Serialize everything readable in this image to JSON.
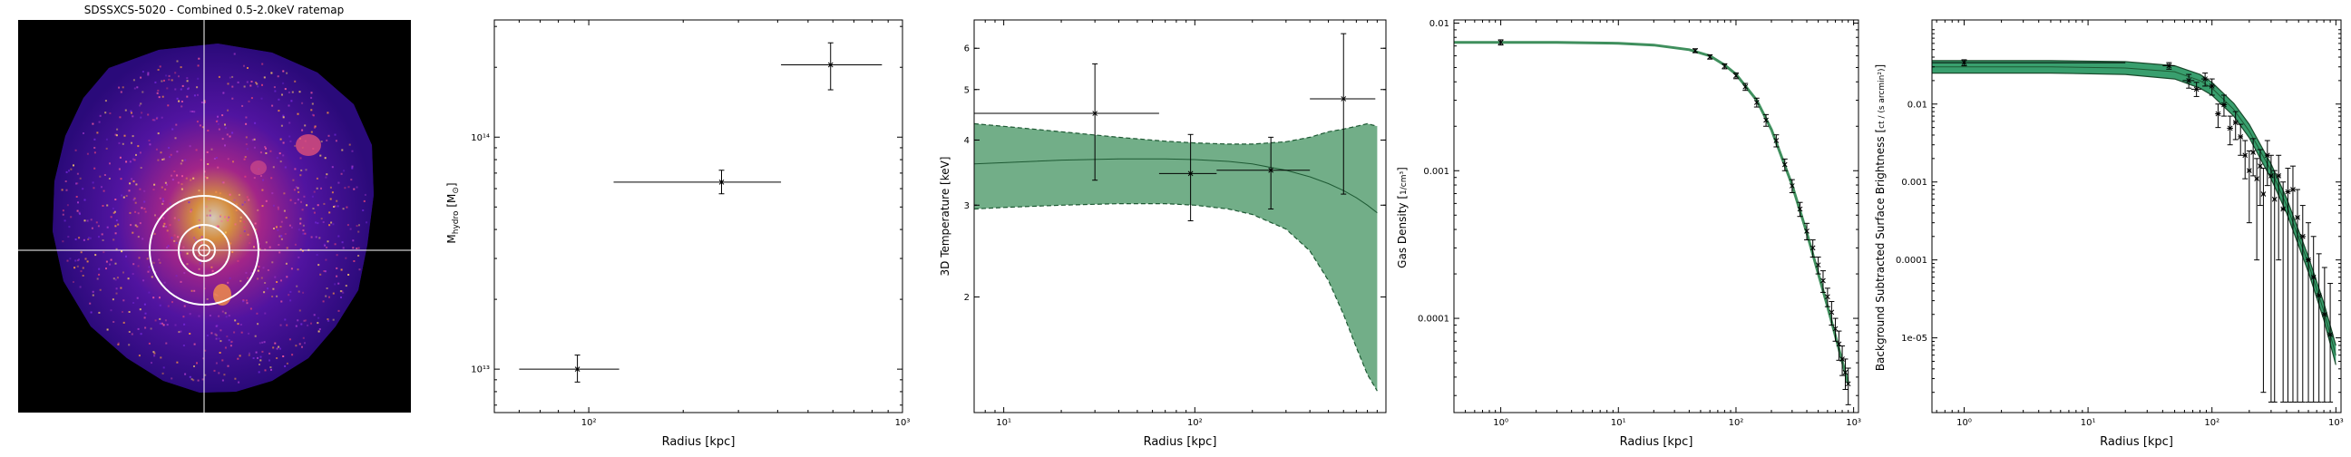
{
  "ratemap": {
    "title": "SDSSXCS-5020 - Combined 0.5-2.0keV ratemap",
    "colors": {
      "background": "#000000",
      "cross": "#ffffff",
      "circles": "#ffffff"
    }
  },
  "chart_data": [
    {
      "type": "scatter",
      "name": "hydrostatic-mass",
      "xlabel": "Radius [kpc]",
      "ylabel": "M_hydro [M_⊙]",
      "xlog": true,
      "ylog": true,
      "xlim": [
        50,
        1000
      ],
      "ylim": [
        6500000000000.0,
        320000000000000.0
      ],
      "xticks": [
        {
          "v": 100,
          "label": "10²"
        },
        {
          "v": 1000,
          "label": "10³"
        }
      ],
      "yticks": [
        {
          "v": 10000000000000.0,
          "label": "10¹³"
        },
        {
          "v": 100000000000000.0,
          "label": "10¹⁴"
        }
      ],
      "points": [
        {
          "x": 92,
          "y": 10000000000000.0,
          "xlo": 60,
          "xhi": 125,
          "ylo": 8800000000000.0,
          "yhi": 11500000000000.0
        },
        {
          "x": 265,
          "y": 64000000000000.0,
          "xlo": 120,
          "xhi": 410,
          "ylo": 57000000000000.0,
          "yhi": 72000000000000.0
        },
        {
          "x": 590,
          "y": 205000000000000.0,
          "xlo": 410,
          "xhi": 860,
          "ylo": 160000000000000.0,
          "yhi": 255000000000000.0
        }
      ]
    },
    {
      "type": "area",
      "name": "temperature-profile",
      "xlabel": "Radius [kpc]",
      "ylabel": "3D Temperature [keV]",
      "xlog": true,
      "ylog": true,
      "xlim": [
        7,
        1000
      ],
      "ylim": [
        1.2,
        6.8
      ],
      "xticks": [
        {
          "v": 10,
          "label": "10¹"
        },
        {
          "v": 100,
          "label": "10²"
        }
      ],
      "yticks": [
        {
          "v": 2,
          "label": "2"
        },
        {
          "v": 3,
          "label": "3"
        },
        {
          "v": 4,
          "label": "4"
        },
        {
          "v": 5,
          "label": "5"
        },
        {
          "v": 6,
          "label": "6"
        }
      ],
      "model": {
        "x": [
          7,
          10,
          20,
          40,
          70,
          100,
          150,
          200,
          300,
          400,
          500,
          600,
          700,
          800,
          900
        ],
        "y": [
          3.6,
          3.62,
          3.66,
          3.68,
          3.68,
          3.67,
          3.64,
          3.6,
          3.5,
          3.4,
          3.3,
          3.2,
          3.1,
          3.0,
          2.9
        ],
        "upper": [
          4.3,
          4.25,
          4.15,
          4.05,
          3.98,
          3.95,
          3.93,
          3.93,
          3.97,
          4.05,
          4.15,
          4.2,
          4.25,
          4.3,
          4.25
        ],
        "lower": [
          2.95,
          2.97,
          3.0,
          3.02,
          3.02,
          3.0,
          2.95,
          2.88,
          2.7,
          2.45,
          2.15,
          1.85,
          1.6,
          1.42,
          1.32
        ],
        "color": "#6aaa82",
        "edge": "#1e5a34"
      },
      "points": [
        {
          "x": 30,
          "y": 4.5,
          "xlo": 7,
          "xhi": 65,
          "ylo": 3.35,
          "yhi": 5.6
        },
        {
          "x": 95,
          "y": 3.45,
          "xlo": 65,
          "xhi": 130,
          "ylo": 2.8,
          "yhi": 4.1
        },
        {
          "x": 250,
          "y": 3.5,
          "xlo": 130,
          "xhi": 400,
          "ylo": 2.95,
          "yhi": 4.05
        },
        {
          "x": 600,
          "y": 4.8,
          "xlo": 400,
          "xhi": 880,
          "ylo": 3.15,
          "yhi": 6.4
        }
      ]
    },
    {
      "type": "line",
      "name": "gas-density",
      "xlabel": "Radius [kpc]",
      "ylabel": "Gas Density [1/cm³]",
      "xlog": true,
      "ylog": true,
      "xlim": [
        0.4,
        1100
      ],
      "ylim": [
        2.3e-05,
        0.0105
      ],
      "xticks": [
        {
          "v": 1,
          "label": "10⁰"
        },
        {
          "v": 10,
          "label": "10¹"
        },
        {
          "v": 100,
          "label": "10²"
        },
        {
          "v": 1000,
          "label": "10³"
        }
      ],
      "yticks": [
        {
          "v": 0.0001,
          "label": "0.0001"
        },
        {
          "v": 0.001,
          "label": "0.001"
        },
        {
          "v": 0.01,
          "label": "0.01"
        }
      ],
      "model": {
        "x": [
          0.4,
          1,
          3,
          10,
          20,
          40,
          60,
          80,
          100,
          150,
          200,
          300,
          400,
          600,
          900
        ],
        "y": [
          0.0074,
          0.0074,
          0.0074,
          0.0073,
          0.0071,
          0.0066,
          0.006,
          0.0052,
          0.0045,
          0.003,
          0.0019,
          0.0008,
          0.00038,
          0.00012,
          3.6e-05
        ],
        "color": "#3f8f5d"
      },
      "points": [
        {
          "x": 1,
          "y": 0.0074,
          "yerr": 0.0003
        },
        {
          "x": 45,
          "y": 0.0065,
          "yerr": 0.0002
        },
        {
          "x": 60,
          "y": 0.0059,
          "yerr": 0.0002
        },
        {
          "x": 80,
          "y": 0.0051,
          "yerr": 0.0002
        },
        {
          "x": 100,
          "y": 0.0044,
          "yerr": 0.0002
        },
        {
          "x": 120,
          "y": 0.0037,
          "yerr": 0.0002
        },
        {
          "x": 150,
          "y": 0.0029,
          "yerr": 0.0002
        },
        {
          "x": 180,
          "y": 0.0022,
          "yerr": 0.0002
        },
        {
          "x": 220,
          "y": 0.0016,
          "yerr": 0.00015
        },
        {
          "x": 260,
          "y": 0.0011,
          "yerr": 0.0001
        },
        {
          "x": 300,
          "y": 0.00079,
          "yerr": 8e-05
        },
        {
          "x": 350,
          "y": 0.00055,
          "yerr": 6e-05
        },
        {
          "x": 400,
          "y": 0.00039,
          "yerr": 5e-05
        },
        {
          "x": 450,
          "y": 0.0003,
          "yerr": 4e-05
        },
        {
          "x": 500,
          "y": 0.00023,
          "yerr": 3e-05
        },
        {
          "x": 550,
          "y": 0.00018,
          "yerr": 3e-05
        },
        {
          "x": 600,
          "y": 0.00014,
          "yerr": 2e-05
        },
        {
          "x": 650,
          "y": 0.00011,
          "yerr": 2e-05
        },
        {
          "x": 700,
          "y": 8.5e-05,
          "yerr": 1.5e-05
        },
        {
          "x": 750,
          "y": 6.7e-05,
          "yerr": 1.5e-05
        },
        {
          "x": 800,
          "y": 5.3e-05,
          "yerr": 1.2e-05
        },
        {
          "x": 850,
          "y": 4.3e-05,
          "yerr": 1e-05
        },
        {
          "x": 900,
          "y": 3.6e-05,
          "yerr": 1e-05
        }
      ]
    },
    {
      "type": "line",
      "name": "surface-brightness",
      "xlabel": "Radius [kpc]",
      "ylabel": "Background Subtracted Surface Brightness [ct / (s arcmin²)]",
      "xlog": true,
      "ylog": true,
      "xlim": [
        0.55,
        1100
      ],
      "ylim": [
        1.1e-06,
        0.12
      ],
      "xticks": [
        {
          "v": 1,
          "label": "10⁰"
        },
        {
          "v": 10,
          "label": "10¹"
        },
        {
          "v": 100,
          "label": "10²"
        },
        {
          "v": 1000,
          "label": "10³"
        }
      ],
      "yticks": [
        {
          "v": 1e-05,
          "label": "1e-05"
        },
        {
          "v": 0.0001,
          "label": "0.0001"
        },
        {
          "v": 0.001,
          "label": "0.001"
        },
        {
          "v": 0.01,
          "label": "0.01"
        }
      ],
      "model": {
        "x": [
          0.55,
          1,
          5,
          20,
          50,
          80,
          100,
          150,
          200,
          300,
          400,
          600,
          800,
          1000
        ],
        "y": [
          0.03,
          0.03,
          0.03,
          0.029,
          0.026,
          0.02,
          0.016,
          0.0085,
          0.0045,
          0.0014,
          0.0005,
          9e-05,
          2.2e-05,
          6e-06
        ],
        "upper": [
          0.036,
          0.036,
          0.036,
          0.035,
          0.031,
          0.024,
          0.019,
          0.0102,
          0.0055,
          0.0017,
          0.00062,
          0.00011,
          2.8e-05,
          8e-06
        ],
        "lower": [
          0.025,
          0.025,
          0.025,
          0.024,
          0.021,
          0.016,
          0.013,
          0.007,
          0.0037,
          0.0011,
          0.0004,
          7e-05,
          1.7e-05,
          4.5e-06
        ],
        "color": "#2e9a66",
        "edge": "#1a4a2c"
      },
      "points": [
        {
          "x": 1,
          "y": 0.034,
          "xlo": 0.55,
          "xhi": 20,
          "ylo": 0.031,
          "yhi": 0.037
        },
        {
          "x": 45,
          "y": 0.031,
          "xlo": 40,
          "xhi": 50,
          "ylo": 0.028,
          "yhi": 0.034
        },
        {
          "x": 65,
          "y": 0.02,
          "xlo": 58,
          "xhi": 72,
          "ylo": 0.016,
          "yhi": 0.024
        },
        {
          "x": 75,
          "y": 0.0155,
          "xlo": 68,
          "xhi": 82,
          "ylo": 0.0125,
          "yhi": 0.019
        },
        {
          "x": 88,
          "y": 0.021,
          "xlo": 82,
          "xhi": 94,
          "ylo": 0.017,
          "yhi": 0.025
        },
        {
          "x": 100,
          "y": 0.017,
          "xlo": 94,
          "xhi": 106,
          "ylo": 0.013,
          "yhi": 0.021
        },
        {
          "x": 112,
          "y": 0.0075,
          "xlo": 106,
          "xhi": 118,
          "ylo": 0.005,
          "yhi": 0.01
        },
        {
          "x": 125,
          "y": 0.0098,
          "xlo": 118,
          "xhi": 132,
          "ylo": 0.007,
          "yhi": 0.013
        },
        {
          "x": 140,
          "y": 0.0049,
          "xlo": 132,
          "xhi": 148,
          "ylo": 0.003,
          "yhi": 0.007
        },
        {
          "x": 155,
          "y": 0.0058,
          "xlo": 148,
          "xhi": 162,
          "ylo": 0.0035,
          "yhi": 0.008
        },
        {
          "x": 170,
          "y": 0.0038,
          "xlo": 162,
          "xhi": 178,
          "ylo": 0.0022,
          "yhi": 0.0055
        },
        {
          "x": 185,
          "y": 0.0022,
          "xlo": 178,
          "xhi": 192,
          "ylo": 0.0011,
          "yhi": 0.0034
        },
        {
          "x": 200,
          "y": 0.0014,
          "xlo": 192,
          "xhi": 208,
          "ylo": 0.0003,
          "yhi": 0.0025
        },
        {
          "x": 215,
          "y": 0.0024,
          "xlo": 208,
          "xhi": 222,
          "ylo": 0.0012,
          "yhi": 0.0036
        },
        {
          "x": 230,
          "y": 0.0011,
          "xlo": 222,
          "xhi": 238,
          "ylo": 0.0001,
          "yhi": 0.002
        },
        {
          "x": 245,
          "y": 0.0016,
          "xlo": 238,
          "xhi": 252,
          "ylo": 0.0005,
          "yhi": 0.0026
        },
        {
          "x": 260,
          "y": 0.0007,
          "xlo": 252,
          "xhi": 268,
          "ylo": 2e-06,
          "yhi": 0.0015
        },
        {
          "x": 280,
          "y": 0.0022,
          "xlo": 268,
          "xhi": 292,
          "ylo": 0.0009,
          "yhi": 0.0034
        },
        {
          "x": 300,
          "y": 0.0012,
          "xlo": 292,
          "xhi": 310,
          "ylo": 1.5e-06,
          "yhi": 0.0022
        },
        {
          "x": 320,
          "y": 0.0006,
          "xlo": 310,
          "xhi": 330,
          "ylo": 1.5e-06,
          "yhi": 0.0014
        },
        {
          "x": 345,
          "y": 0.0012,
          "xlo": 330,
          "xhi": 360,
          "ylo": 0.0001,
          "yhi": 0.0022
        },
        {
          "x": 375,
          "y": 0.00045,
          "xlo": 360,
          "xhi": 390,
          "ylo": 1.5e-06,
          "yhi": 0.001
        },
        {
          "x": 410,
          "y": 0.00075,
          "xlo": 390,
          "xhi": 430,
          "ylo": 1.5e-06,
          "yhi": 0.0015
        },
        {
          "x": 450,
          "y": 0.0008,
          "xlo": 430,
          "xhi": 470,
          "ylo": 1.5e-06,
          "yhi": 0.0016
        },
        {
          "x": 490,
          "y": 0.00035,
          "xlo": 470,
          "xhi": 510,
          "ylo": 1.5e-06,
          "yhi": 0.0008
        },
        {
          "x": 540,
          "y": 0.0002,
          "xlo": 510,
          "xhi": 570,
          "ylo": 1.5e-06,
          "yhi": 0.0005
        },
        {
          "x": 600,
          "y": 0.0001,
          "xlo": 570,
          "xhi": 630,
          "ylo": 1.5e-06,
          "yhi": 0.0003
        },
        {
          "x": 660,
          "y": 6e-05,
          "xlo": 630,
          "xhi": 690,
          "ylo": 1.5e-06,
          "yhi": 0.0002
        },
        {
          "x": 730,
          "y": 3.5e-05,
          "xlo": 690,
          "xhi": 770,
          "ylo": 1.5e-06,
          "yhi": 0.00012
        },
        {
          "x": 810,
          "y": 2e-05,
          "xlo": 770,
          "xhi": 850,
          "ylo": 1.5e-06,
          "yhi": 8e-05
        },
        {
          "x": 900,
          "y": 1.1e-05,
          "xlo": 850,
          "xhi": 950,
          "ylo": 1.5e-06,
          "yhi": 5e-05
        }
      ]
    }
  ]
}
